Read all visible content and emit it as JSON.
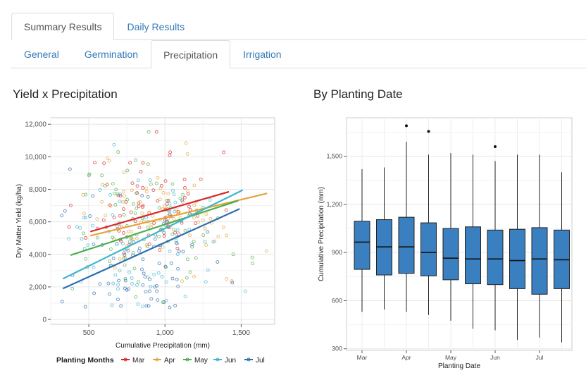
{
  "tabs_top": [
    {
      "label": "Summary Results",
      "active": true
    },
    {
      "label": "Daily Results",
      "active": false
    }
  ],
  "tabs_sub": [
    {
      "label": "General",
      "active": false
    },
    {
      "label": "Germination",
      "active": false
    },
    {
      "label": "Precipitation",
      "active": true
    },
    {
      "label": "Irrigation",
      "active": false
    }
  ],
  "left_title": "Yield x Precipitation",
  "right_title": "By Planting Date",
  "chart_data": [
    {
      "type": "scatter",
      "title": "Yield x Precipitation",
      "xlabel": "Cumulative Precipitation (mm)",
      "ylabel": "Dry Matter Yield (kg/ha)",
      "xlim": [
        250,
        1720
      ],
      "ylim": [
        -300,
        12400
      ],
      "x_ticks": [
        500,
        1000,
        1500
      ],
      "x_tick_labels": [
        "500",
        "1,000",
        "1,500"
      ],
      "y_ticks": [
        0,
        2000,
        4000,
        6000,
        8000,
        10000,
        12000
      ],
      "y_tick_labels": [
        "0",
        "2,000",
        "4,000",
        "6,000",
        "8,000",
        "10,000",
        "12,000"
      ],
      "grid": true,
      "legend_title": "Planting Months",
      "legend_position": "bottom",
      "series": [
        {
          "name": "Mar",
          "color": "#d62728",
          "fit_line": {
            "x": [
              510,
              1420
            ],
            "y": [
              5400,
              7850
            ]
          },
          "point_cloud": {
            "x_center": 900,
            "x_spread": 210,
            "y_center": 6900,
            "y_spread": 1700,
            "n": 80
          }
        },
        {
          "name": "Apr",
          "color": "#e6a33a",
          "fit_line": {
            "x": [
              510,
              1670
            ],
            "y": [
              5150,
              7750
            ]
          },
          "point_cloud": {
            "x_center": 950,
            "x_spread": 250,
            "y_center": 6600,
            "y_spread": 1800,
            "n": 80
          }
        },
        {
          "name": "May",
          "color": "#4cae4c",
          "fit_line": {
            "x": [
              380,
              1480
            ],
            "y": [
              3950,
              7300
            ]
          },
          "point_cloud": {
            "x_center": 900,
            "x_spread": 220,
            "y_center": 5600,
            "y_spread": 2000,
            "n": 80
          }
        },
        {
          "name": "Jun",
          "color": "#3fb5cc",
          "fit_line": {
            "x": [
              330,
              1510
            ],
            "y": [
              2500,
              7950
            ]
          },
          "point_cloud": {
            "x_center": 850,
            "x_spread": 240,
            "y_center": 4400,
            "y_spread": 2300,
            "n": 80
          }
        },
        {
          "name": "Jul",
          "color": "#2c6eaf",
          "fit_line": {
            "x": [
              330,
              1490
            ],
            "y": [
              1900,
              6800
            ]
          },
          "point_cloud": {
            "x_center": 820,
            "x_spread": 240,
            "y_center": 3300,
            "y_spread": 2200,
            "n": 80
          }
        }
      ]
    },
    {
      "type": "box",
      "title": "By Planting Date",
      "xlabel": "Planting Date",
      "ylabel": "Cumulative Precipitation (mm)",
      "ylim": [
        290,
        1740
      ],
      "y_ticks": [
        300,
        600,
        900,
        1200,
        1500
      ],
      "y_tick_labels": [
        "300",
        "600",
        "900",
        "1,200",
        "1,500"
      ],
      "x_tick_labels": [
        "Mar",
        "Apr",
        "May",
        "Jun",
        "Jul"
      ],
      "fill": "#3a7fbf",
      "boxes": [
        {
          "min": 530,
          "q1": 795,
          "median": 965,
          "q3": 1095,
          "max": 1420,
          "outliers": []
        },
        {
          "min": 545,
          "q1": 760,
          "median": 935,
          "q3": 1105,
          "max": 1430,
          "outliers": []
        },
        {
          "min": 530,
          "q1": 770,
          "median": 935,
          "q3": 1120,
          "max": 1590,
          "outliers": [
            1690
          ]
        },
        {
          "min": 510,
          "q1": 755,
          "median": 900,
          "q3": 1085,
          "max": 1510,
          "outliers": [
            1655
          ]
        },
        {
          "min": 475,
          "q1": 730,
          "median": 865,
          "q3": 1050,
          "max": 1520,
          "outliers": []
        },
        {
          "min": 425,
          "q1": 705,
          "median": 860,
          "q3": 1060,
          "max": 1510,
          "outliers": []
        },
        {
          "min": 415,
          "q1": 700,
          "median": 860,
          "q3": 1040,
          "max": 1470,
          "outliers": [
            1560
          ]
        },
        {
          "min": 355,
          "q1": 675,
          "median": 850,
          "q3": 1045,
          "max": 1510,
          "outliers": []
        },
        {
          "min": 370,
          "q1": 640,
          "median": 860,
          "q3": 1055,
          "max": 1510,
          "outliers": []
        },
        {
          "min": 340,
          "q1": 675,
          "median": 855,
          "q3": 1040,
          "max": 1400,
          "outliers": []
        }
      ]
    }
  ]
}
